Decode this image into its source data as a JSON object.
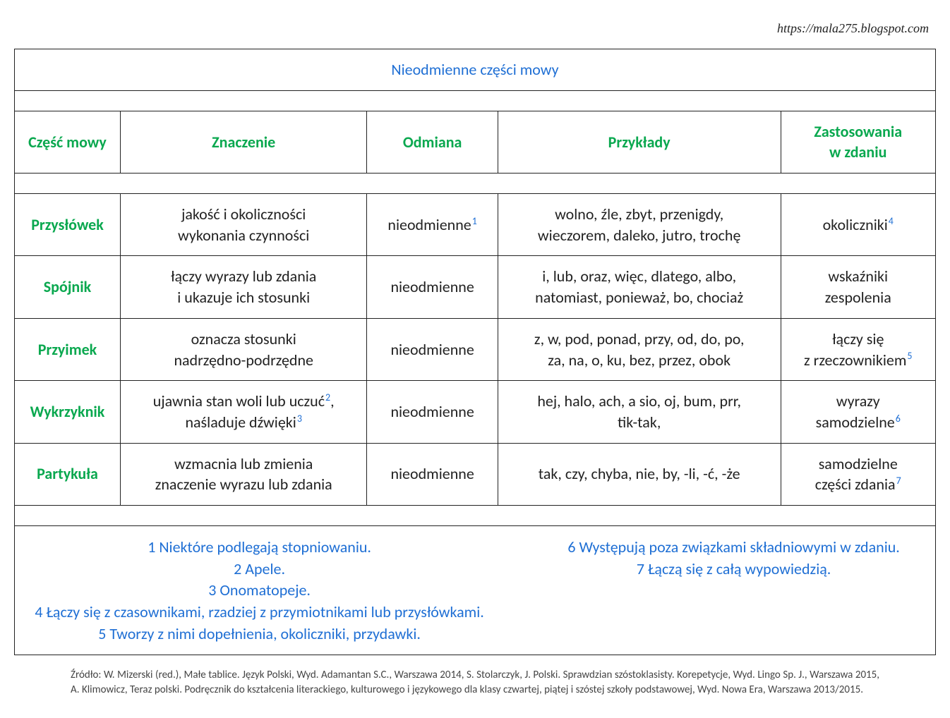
{
  "url": "https://mala275.blogspot.com",
  "title": "Nieodmienne części mowy",
  "columns": {
    "c1": "Część mowy",
    "c2": "Znaczenie",
    "c3": "Odmiana",
    "c4": "Przykłady",
    "c5_l1": "Zastosowania",
    "c5_l2": "w zdaniu"
  },
  "rows": {
    "r1": {
      "name": "Przysłówek",
      "meaning_l1": "jakość i okoliczności",
      "meaning_l2": "wykonania czynności",
      "decl": "nieodmienne",
      "decl_fn": "1",
      "ex_l1": "wolno, źle, zbyt, przenigdy,",
      "ex_l2": "wieczorem, daleko, jutro, trochę",
      "use": "okoliczniki",
      "use_fn": "4"
    },
    "r2": {
      "name": "Spójnik",
      "meaning_l1": "łączy wyrazy lub zdania",
      "meaning_l2": "i ukazuje ich stosunki",
      "decl": "nieodmienne",
      "ex_l1": "i, lub, oraz, więc, dlatego, albo,",
      "ex_l2": "natomiast, ponieważ, bo, chociaż",
      "use_l1": "wskaźniki",
      "use_l2": "zespolenia"
    },
    "r3": {
      "name": "Przyimek",
      "meaning_l1": "oznacza stosunki",
      "meaning_l2": "nadrzędno-podrzędne",
      "decl": "nieodmienne",
      "ex_l1": "z, w, pod, ponad, przy, od, do, po,",
      "ex_l2": "za, na, o, ku, bez, przez, obok",
      "use_l1": "łączy się",
      "use_l2": "z rzeczownikiem",
      "use_fn": "5"
    },
    "r4": {
      "name": "Wykrzyknik",
      "meaning_l1a": "ujawnia stan woli lub uczuć",
      "meaning_l1_fn": "2",
      "meaning_l1b": ",",
      "meaning_l2a": "naśladuje dźwięki",
      "meaning_l2_fn": "3",
      "decl": "nieodmienne",
      "ex_l1": "hej, halo, ach, a sio, oj, bum, prr,",
      "ex_l2": "tik-tak,",
      "use_l1": "wyrazy",
      "use_l2": "samodzielne",
      "use_fn": "6"
    },
    "r5": {
      "name": "Partykuła",
      "meaning_l1": "wzmacnia lub zmienia",
      "meaning_l2": "znaczenie wyrazu lub zdania",
      "decl": "nieodmienne",
      "ex": "tak, czy, chyba, nie, by, -li, -ć, -że",
      "use_l1": "samodzielne",
      "use_l2": "części zdania",
      "use_fn": "7"
    }
  },
  "footnotes": {
    "f1": "1 Niektóre podlegają stopniowaniu.",
    "f2": "2 Apele.",
    "f3": "3 Onomatopeje.",
    "f4": "4 Łączy się z czasownikami, rzadziej z przymiotnikami lub przysłówkami.",
    "f5": "5 Tworzy z nimi dopełnienia, okoliczniki, przydawki.",
    "f6": "6 Występują poza związkami składniowymi w zdaniu.",
    "f7": "7 Łączą się z całą wypowiedzią."
  },
  "source": "Źródło: W. Mizerski (red.), Małe tablice. Język Polski, Wyd. Adamantan S.C., Warszawa 2014, S. Stolarczyk, J. Polski. Sprawdzian szóstoklasisty. Korepetycje, Wyd. Lingo Sp. J., Warszawa 2015, A. Klimowicz, Teraz polski. Podręcznik do kształcenia literackiego, kulturowego i językowego dla klasy czwartej, piątej i szóstej szkoły podstawowej, Wyd. Nowa Era, Warszawa 2013/2015."
}
